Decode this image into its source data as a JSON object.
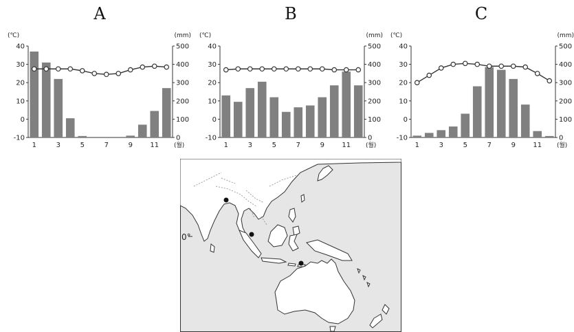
{
  "chart_data": [
    {
      "type": "bar",
      "title": "A",
      "left_unit": "(℃)",
      "right_unit": "(mm)",
      "month_unit": "(월)",
      "x": [
        1,
        2,
        3,
        4,
        5,
        6,
        7,
        8,
        9,
        10,
        11,
        12
      ],
      "xticks": [
        1,
        3,
        5,
        7,
        9,
        11
      ],
      "ylim_temp": [
        -10,
        40
      ],
      "yticks_temp": [
        40,
        30,
        20,
        10,
        0,
        -10
      ],
      "ylim_precip": [
        0,
        500
      ],
      "yticks_precip": [
        500,
        400,
        300,
        200,
        100,
        0
      ],
      "series": [
        {
          "kind": "bar",
          "values": [
            470,
            410,
            320,
            105,
            8,
            0,
            0,
            0,
            10,
            70,
            145,
            270
          ]
        },
        {
          "kind": "line",
          "values": [
            27.5,
            27.5,
            27.5,
            27.5,
            26.5,
            25,
            24.5,
            25,
            27,
            28.5,
            29,
            28.5
          ]
        }
      ]
    },
    {
      "type": "bar",
      "title": "B",
      "left_unit": "(℃)",
      "right_unit": "(mm)",
      "month_unit": "(월)",
      "x": [
        1,
        2,
        3,
        4,
        5,
        6,
        7,
        8,
        9,
        10,
        11,
        12
      ],
      "xticks": [
        1,
        3,
        5,
        7,
        9,
        11
      ],
      "ylim_temp": [
        -10,
        40
      ],
      "yticks_temp": [
        40,
        30,
        20,
        10,
        0,
        -10
      ],
      "ylim_precip": [
        0,
        500
      ],
      "yticks_precip": [
        500,
        400,
        300,
        200,
        100,
        0
      ],
      "series": [
        {
          "kind": "bar",
          "values": [
            230,
            195,
            270,
            305,
            220,
            140,
            165,
            175,
            220,
            285,
            360,
            285
          ]
        },
        {
          "kind": "line",
          "values": [
            27,
            27.5,
            27.5,
            27.5,
            27.5,
            27.5,
            27.5,
            27.5,
            27.5,
            27,
            27,
            27
          ]
        }
      ]
    },
    {
      "type": "bar",
      "title": "C",
      "left_unit": "(℃)",
      "right_unit": "(mm)",
      "month_unit": "(월)",
      "x": [
        1,
        2,
        3,
        4,
        5,
        6,
        7,
        8,
        9,
        10,
        11,
        12
      ],
      "xticks": [
        1,
        3,
        5,
        7,
        9,
        11
      ],
      "ylim_temp": [
        -10,
        40
      ],
      "yticks_temp": [
        40,
        30,
        20,
        10,
        0,
        -10
      ],
      "ylim_precip": [
        0,
        500
      ],
      "yticks_precip": [
        500,
        400,
        300,
        200,
        100,
        0
      ],
      "series": [
        {
          "kind": "bar",
          "values": [
            10,
            25,
            40,
            60,
            130,
            280,
            385,
            370,
            320,
            180,
            35,
            8
          ]
        },
        {
          "kind": "line",
          "values": [
            20,
            24,
            28,
            30,
            30.5,
            30,
            29,
            29,
            29,
            28.5,
            25,
            21
          ]
        }
      ]
    }
  ],
  "map": {
    "equator_label": "0°",
    "colors": {
      "land": "#ffffff",
      "sea": "#e6e6e6",
      "coast": "#333333",
      "border": "#888888",
      "point": "#111111"
    }
  },
  "colors": {
    "bar": "#808080",
    "line": "#333333",
    "marker_fill": "#ffffff",
    "axis": "#333333"
  }
}
